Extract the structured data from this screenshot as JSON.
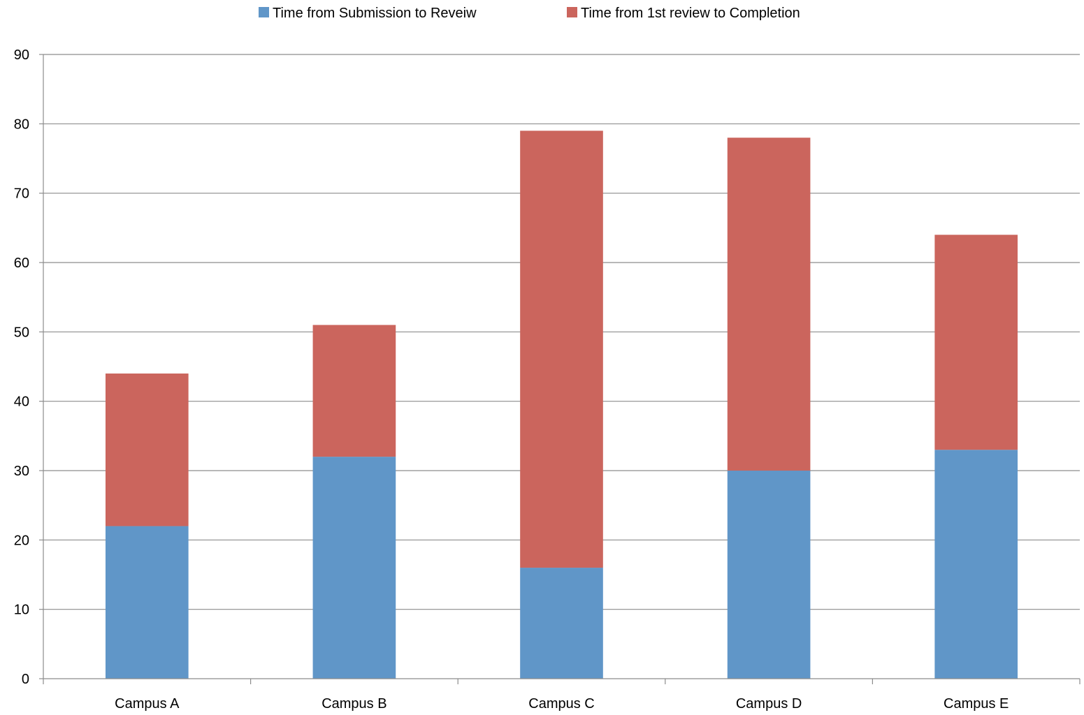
{
  "chart_data": {
    "type": "bar",
    "stacked": true,
    "categories": [
      "Campus A",
      "Campus B",
      "Campus C",
      "Campus D",
      "Campus E"
    ],
    "series": [
      {
        "name": "Time from Submission to Reveiw",
        "values": [
          22,
          32,
          16,
          30,
          33
        ],
        "color": "#6096C8"
      },
      {
        "name": "Time from 1st review to Completion",
        "values": [
          22,
          19,
          63,
          48,
          31
        ],
        "color": "#CB655D"
      }
    ],
    "ylim": [
      0,
      90
    ],
    "yticks": [
      0,
      10,
      20,
      30,
      40,
      50,
      60,
      70,
      80,
      90
    ],
    "grid": true,
    "legend_position": "top"
  }
}
